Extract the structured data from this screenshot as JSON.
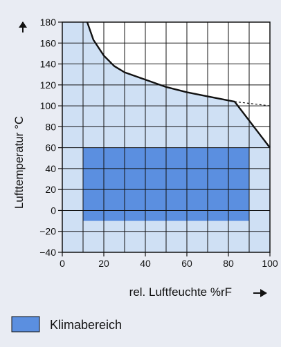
{
  "chart_data": {
    "type": "area",
    "xlabel": "rel. Luftfeuchte %rF",
    "ylabel": "Lufttemperatur °C",
    "xlim": [
      0,
      100
    ],
    "ylim": [
      -40,
      180
    ],
    "x_ticks": [
      0,
      20,
      40,
      60,
      80,
      100
    ],
    "y_ticks": [
      -40,
      -20,
      0,
      20,
      40,
      60,
      80,
      100,
      120,
      140,
      160,
      180
    ],
    "grid": true,
    "limit_curve": {
      "x": [
        12,
        15,
        20,
        25,
        30,
        40,
        50,
        60,
        70,
        83,
        100
      ],
      "y": [
        180,
        163,
        148,
        138,
        132,
        125,
        118,
        113,
        109,
        104,
        60
      ]
    },
    "limit_curve_dashed_extension": {
      "x": [
        83,
        100
      ],
      "y": [
        104,
        100
      ]
    },
    "region_colors": {
      "operating_area": "#cfe0f4",
      "klimabereich": "#5b8fe0",
      "outside": "#ffffff",
      "grid": "#111111"
    },
    "klimabereich": {
      "x_range": [
        10,
        90
      ],
      "y_range": [
        -10,
        60
      ]
    },
    "legend": {
      "placement": "bottom-left",
      "label": "Klimabereich"
    }
  }
}
